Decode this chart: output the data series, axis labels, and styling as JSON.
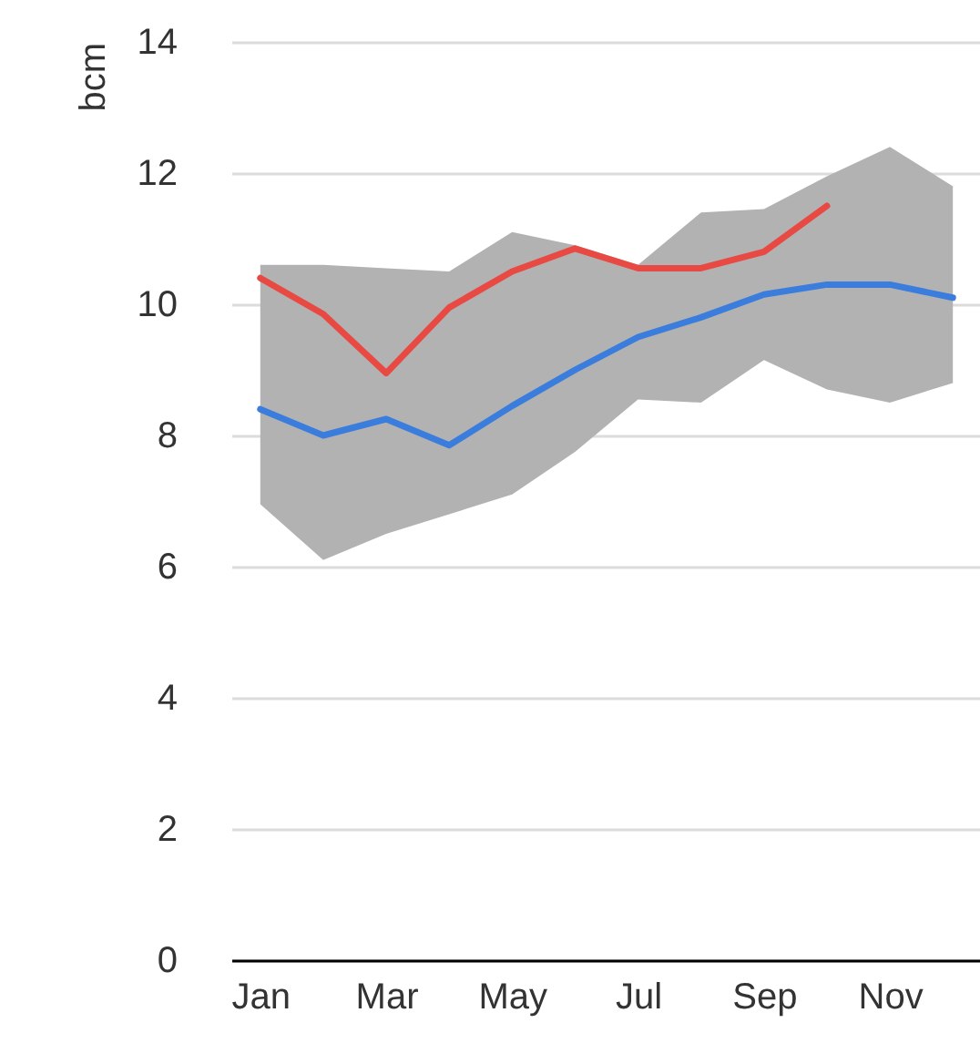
{
  "chart_data": {
    "type": "line",
    "ylabel": "bcm",
    "categories": [
      "Jan",
      null,
      "Mar",
      null,
      "May",
      null,
      "Jul",
      null,
      "Sep",
      null,
      "Nov",
      null
    ],
    "ylim": [
      0,
      14
    ],
    "yticks": [
      0,
      2,
      4,
      6,
      8,
      10,
      12,
      14
    ],
    "grid": "y",
    "series": [
      {
        "color": "#3b7ddd",
        "values": [
          8.4,
          8.0,
          8.25,
          7.85,
          8.45,
          9.0,
          9.5,
          9.8,
          10.15,
          10.3,
          10.3,
          10.1
        ],
        "lower": [
          6.95,
          6.1,
          6.5,
          6.8,
          7.1,
          7.75,
          8.55,
          8.5,
          9.15,
          8.7,
          8.5,
          8.8
        ],
        "upper": [
          10.6,
          10.6,
          10.55,
          10.5,
          11.1,
          10.9,
          10.6,
          11.4,
          11.45,
          11.95,
          12.4,
          11.8
        ]
      },
      {
        "color": "#e84a43",
        "values": [
          10.4,
          9.85,
          8.95,
          9.95,
          10.5,
          10.85,
          10.55,
          10.55,
          10.8,
          11.5,
          null,
          null
        ]
      }
    ]
  }
}
